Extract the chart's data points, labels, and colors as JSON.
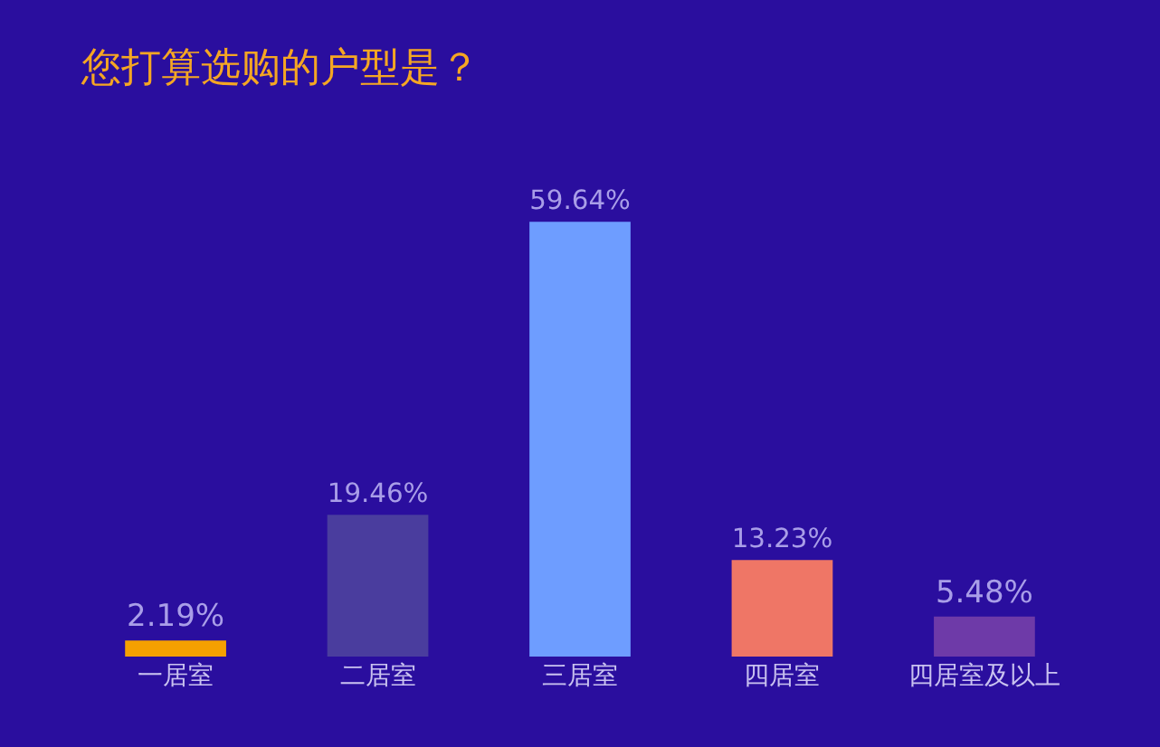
{
  "chart_data": {
    "type": "bar",
    "title": "您打算选购的户型是？",
    "categories": [
      "一居室",
      "二居室",
      "三居室",
      "四居室",
      "四居室及以上"
    ],
    "values": [
      2.19,
      19.46,
      59.64,
      13.23,
      5.48
    ],
    "value_labels": [
      "2.19%",
      "19.46%",
      "59.64%",
      "13.23%",
      "5.48%"
    ],
    "colors": [
      "#f5a000",
      "#4a3d9e",
      "#6e9dff",
      "#ef7666",
      "#6e3aa8"
    ]
  }
}
